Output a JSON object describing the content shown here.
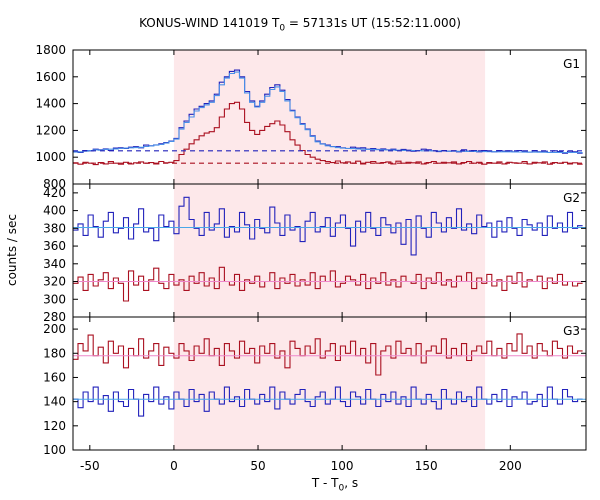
{
  "chart_data": {
    "type": "line",
    "title": {
      "pre": "KONUS-WIND 141019 T",
      "sub": "0",
      "post": " = 57131s UT (15:52:11.000)"
    },
    "xlabel": {
      "pre": "T - T",
      "sub": "0",
      "post": ", s"
    },
    "ylabel": "counts / sec",
    "xlim": [
      -60,
      245
    ],
    "x_ticks": [
      "-50",
      "0",
      "50",
      "100",
      "150",
      "200"
    ],
    "x_tick_values": [
      -50,
      0,
      50,
      100,
      150,
      200
    ],
    "highlight_interval": [
      0,
      185
    ],
    "bin_width": 3,
    "bin_start": -60,
    "colors": {
      "highlight": "#fde8ea",
      "blue": "#2222bb",
      "red": "#aa1020",
      "fit_blue": "#4aa8e8",
      "fit_pink": "#ee88cc",
      "light_blue": "#4a90e8"
    },
    "panels": [
      {
        "label": "G1",
        "ylim": [
          800,
          1800
        ],
        "y_ticks": [
          "800",
          "1000",
          "1200",
          "1400",
          "1600",
          "1800"
        ],
        "y_tick_values": [
          800,
          1000,
          1200,
          1400,
          1600,
          1800
        ],
        "series": [
          {
            "style": "blue-step",
            "values": [
              1042,
              1035,
              1050,
              1048,
              1060,
              1055,
              1062,
              1050,
              1068,
              1070,
              1065,
              1075,
              1078,
              1070,
              1090,
              1085,
              1092,
              1100,
              1110,
              1120,
              1140,
              1220,
              1270,
              1320,
              1360,
              1380,
              1400,
              1420,
              1470,
              1560,
              1600,
              1640,
              1650,
              1600,
              1490,
              1420,
              1380,
              1420,
              1470,
              1520,
              1540,
              1500,
              1430,
              1350,
              1300,
              1250,
              1210,
              1160,
              1120,
              1100,
              1090,
              1080,
              1078,
              1070,
              1065,
              1075,
              1068,
              1070,
              1060,
              1065,
              1058,
              1062,
              1055,
              1060,
              1050,
              1058,
              1052,
              1045,
              1050,
              1060,
              1055,
              1048,
              1042,
              1050,
              1045,
              1048,
              1040,
              1055,
              1045,
              1050,
              1040,
              1050,
              1046,
              1040,
              1050,
              1045,
              1048,
              1040,
              1050,
              1042,
              1038,
              1050,
              1040,
              1045,
              1035,
              1048,
              1042,
              1030,
              1045,
              1040,
              1030
            ]
          },
          {
            "style": "lightblue-step",
            "values": [
              1038,
              1040,
              1045,
              1050,
              1055,
              1052,
              1058,
              1060,
              1062,
              1065,
              1068,
              1070,
              1072,
              1074,
              1080,
              1084,
              1090,
              1095,
              1105,
              1118,
              1135,
              1210,
              1260,
              1300,
              1345,
              1370,
              1390,
              1410,
              1460,
              1540,
              1590,
              1625,
              1635,
              1590,
              1480,
              1410,
              1375,
              1410,
              1455,
              1505,
              1525,
              1490,
              1420,
              1345,
              1295,
              1245,
              1205,
              1155,
              1115,
              1098,
              1085,
              1078,
              1072,
              1068,
              1066,
              1064,
              1062,
              1060,
              1058,
              1058,
              1056,
              1055,
              1054,
              1053,
              1052,
              1051,
              1050,
              1050,
              1049,
              1048,
              1048,
              1047,
              1046,
              1046,
              1045,
              1045,
              1044,
              1044,
              1043,
              1043,
              1042,
              1042,
              1041,
              1041,
              1040,
              1040,
              1040,
              1039,
              1039,
              1038,
              1038,
              1038,
              1037,
              1037,
              1036,
              1036,
              1036,
              1035,
              1035,
              1035,
              1034
            ]
          },
          {
            "style": "red-step",
            "values": [
              958,
              948,
              962,
              955,
              945,
              960,
              950,
              968,
              955,
              948,
              962,
              950,
              958,
              965,
              955,
              960,
              950,
              968,
              958,
              962,
              975,
              1020,
              1060,
              1100,
              1130,
              1160,
              1180,
              1190,
              1220,
              1300,
              1360,
              1400,
              1410,
              1360,
              1260,
              1200,
              1170,
              1200,
              1230,
              1250,
              1270,
              1240,
              1190,
              1130,
              1090,
              1050,
              1020,
              1000,
              985,
              975,
              968,
              960,
              972,
              958,
              965,
              955,
              970,
              950,
              962,
              968,
              955,
              960,
              965,
              950,
              970,
              955,
              962,
              958,
              965,
              950,
              960,
              968,
              955,
              962,
              958,
              965,
              950,
              960,
              968,
              955,
              962,
              948,
              960,
              955,
              965,
              950,
              962,
              958,
              955,
              968,
              950,
              962,
              958,
              965,
              948,
              960,
              955,
              962,
              950,
              958,
              948
            ]
          },
          {
            "style": "blue-dash",
            "values": [
              1048,
              1048
            ]
          },
          {
            "style": "red-dash",
            "values": [
              955,
              955
            ]
          }
        ]
      },
      {
        "label": "G2",
        "ylim": [
          280,
          430
        ],
        "y_ticks": [
          "280",
          "300",
          "320",
          "340",
          "360",
          "380",
          "400",
          "420"
        ],
        "y_tick_values": [
          280,
          300,
          320,
          340,
          360,
          380,
          400,
          420
        ],
        "series": [
          {
            "style": "blue-step",
            "values": [
              378,
              385,
              372,
              395,
              382,
              370,
              388,
              398,
              375,
              380,
              392,
              368,
              385,
              402,
              376,
              380,
              366,
              395,
              382,
              388,
              374,
              405,
              415,
              390,
              380,
              372,
              398,
              378,
              385,
              402,
              370,
              382,
              376,
              398,
              384,
              368,
              390,
              380,
              375,
              404,
              386,
              372,
              395,
              378,
              382,
              365,
              388,
              398,
              376,
              382,
              392,
              371,
              386,
              395,
              380,
              360,
              388,
              376,
              398,
              380,
              372,
              392,
              384,
              375,
              386,
              362,
              390,
              350,
              394,
              380,
              370,
              398,
              386,
              376,
              392,
              380,
              402,
              378,
              385,
              374,
              395,
              382,
              386,
              370,
              388,
              376,
              392,
              380,
              372,
              390,
              384,
              378,
              386,
              372,
              394,
              380,
              386,
              376,
              398,
              380,
              383
            ]
          },
          {
            "style": "red-step",
            "values": [
              318,
              325,
              310,
              328,
              315,
              322,
              330,
              312,
              324,
              318,
              298,
              332,
              316,
              326,
              310,
              322,
              335,
              318,
              312,
              328,
              316,
              322,
              310,
              326,
              318,
              330,
              315,
              324,
              312,
              336,
              320,
              316,
              328,
              310,
              322,
              318,
              326,
              314,
              320,
              330,
              312,
              324,
              318,
              328,
              315,
              322,
              316,
              330,
              312,
              326,
              320,
              332,
              314,
              318,
              326,
              322,
              316,
              328,
              312,
              324,
              318,
              330,
              316,
              322,
              314,
              326,
              320,
              318,
              328,
              312,
              324,
              318,
              330,
              316,
              322,
              314,
              326,
              320,
              330,
              312,
              324,
              318,
              328,
              315,
              322,
              310,
              326,
              318,
              330,
              314,
              322,
              320,
              326,
              312,
              324,
              318,
              328,
              316,
              320,
              315,
              318
            ]
          },
          {
            "style": "green-fit",
            "values": [
              381,
              381
            ]
          },
          {
            "style": "pink-fit",
            "values": [
              320,
              320
            ]
          }
        ]
      },
      {
        "label": "G3",
        "ylim": [
          100,
          210
        ],
        "y_ticks": [
          "100",
          "120",
          "140",
          "160",
          "180",
          "200"
        ],
        "y_tick_values": [
          100,
          120,
          140,
          160,
          180,
          200
        ],
        "series": [
          {
            "style": "red-step",
            "values": [
              175,
              188,
              182,
              195,
              178,
              185,
              172,
              190,
              180,
              186,
              168,
              184,
              178,
              192,
              176,
              182,
              188,
              170,
              185,
              180,
              176,
              188,
              182,
              174,
              186,
              180,
              192,
              178,
              184,
              170,
              188,
              182,
              176,
              190,
              180,
              184,
              172,
              186,
              180,
              188,
              176,
              182,
              168,
              190,
              184,
              178,
              186,
              180,
              192,
              176,
              182,
              188,
              174,
              186,
              180,
              190,
              178,
              184,
              172,
              188,
              162,
              182,
              186,
              176,
              190,
              180,
              184,
              178,
              188,
              172,
              182,
              186,
              180,
              192,
              176,
              184,
              178,
              188,
              174,
              182,
              186,
              180,
              190,
              178,
              184,
              176,
              188,
              182,
              196,
              180,
              186,
              176,
              188,
              182,
              178,
              190,
              184,
              176,
              186,
              180,
              182
            ]
          },
          {
            "style": "blue-step",
            "values": [
              142,
              135,
              148,
              140,
              152,
              138,
              145,
              132,
              148,
              140,
              136,
              150,
              142,
              128,
              146,
              140,
              152,
              138,
              144,
              134,
              148,
              142,
              136,
              150,
              140,
              146,
              132,
              148,
              142,
              138,
              152,
              140,
              144,
              136,
              150,
              142,
              138,
              146,
              140,
              152,
              134,
              148,
              142,
              138,
              146,
              150,
              140,
              136,
              144,
              148,
              138,
              142,
              152,
              140,
              136,
              148,
              144,
              138,
              150,
              142,
              136,
              146,
              140,
              148,
              138,
              144,
              136,
              152,
              142,
              138,
              146,
              140,
              134,
              150,
              142,
              138,
              148,
              140,
              144,
              136,
              152,
              142,
              138,
              146,
              140,
              150,
              136,
              144,
              142,
              148,
              138,
              140,
              146,
              136,
              152,
              142,
              138,
              150,
              144,
              140,
              142
            ]
          },
          {
            "style": "pink-fit",
            "values": [
              178,
              178
            ]
          },
          {
            "style": "green-fit",
            "values": [
              142,
              142
            ]
          }
        ]
      }
    ]
  }
}
